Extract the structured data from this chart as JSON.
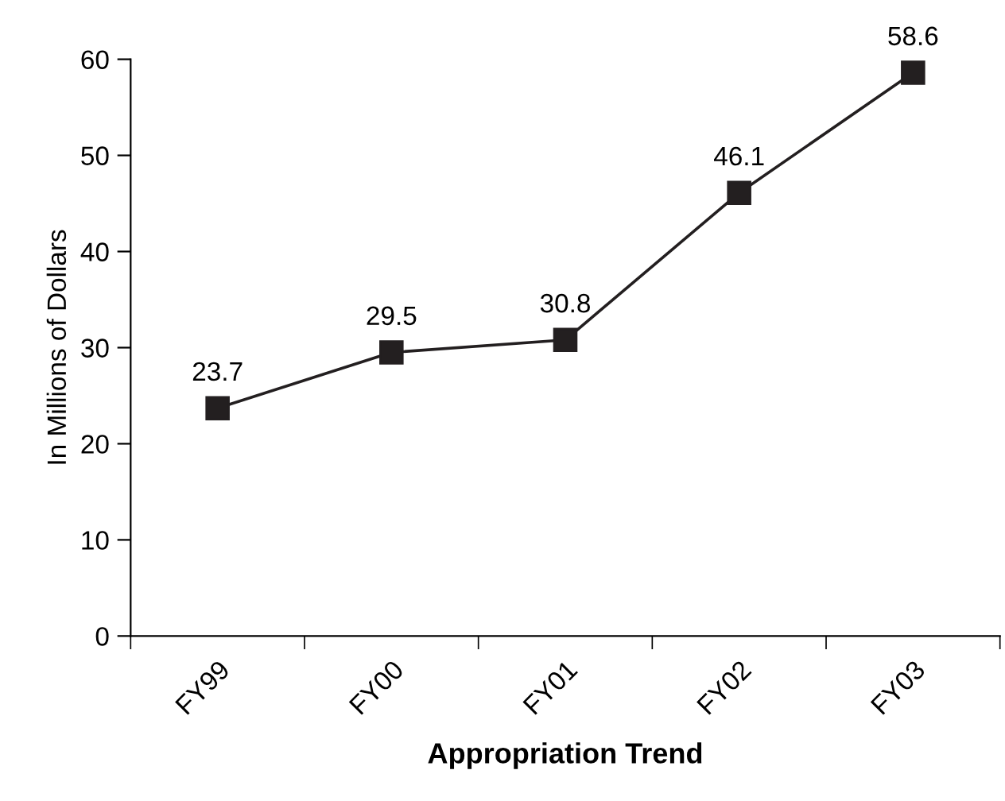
{
  "chart_data": {
    "type": "line",
    "xlabel": "Appropriation Trend",
    "ylabel": "In Millions of Dollars",
    "categories": [
      "FY99",
      "FY00",
      "FY01",
      "FY02",
      "FY03"
    ],
    "series": [
      {
        "color": "#231f20",
        "values": [
          23.7,
          29.5,
          30.8,
          46.1,
          58.6
        ]
      }
    ],
    "ylim": [
      0,
      60
    ],
    "yticks": [
      0,
      10,
      20,
      30,
      40,
      50,
      60
    ],
    "marker": "square",
    "line_style": "solid",
    "data_labels": true,
    "grid": false,
    "legend": false
  }
}
